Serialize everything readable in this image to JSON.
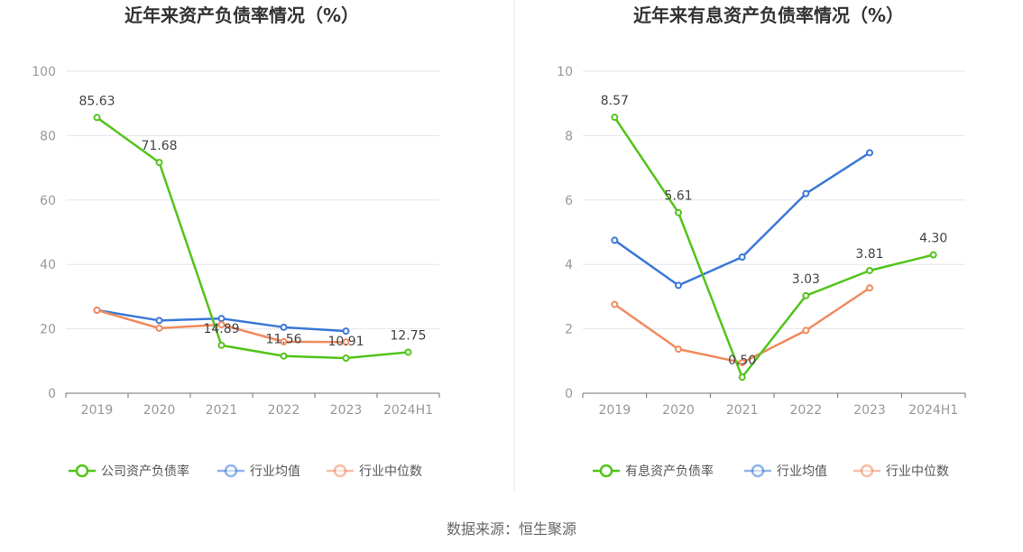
{
  "source": "数据来源：恒生聚源",
  "chart_data": [
    {
      "type": "line",
      "title": "近年来资产负债率情况（%）",
      "categories": [
        "2019",
        "2020",
        "2021",
        "2022",
        "2023",
        "2024H1"
      ],
      "ylim": [
        0,
        100
      ],
      "yticks": [
        0,
        20,
        40,
        60,
        80,
        100
      ],
      "ytick_labels": [
        "0",
        "20",
        "40",
        "60",
        "80",
        "100"
      ],
      "grid": true,
      "legend_position": "bottom",
      "series": [
        {
          "name": "公司资产负债率",
          "color": "#52c41a",
          "values": [
            85.63,
            71.68,
            14.89,
            11.56,
            10.91,
            12.75
          ],
          "labels": [
            "85.63",
            "71.68",
            "14.89",
            "11.56",
            "10.91",
            "12.75"
          ]
        },
        {
          "name": "行业均值",
          "color": "#3a78d8",
          "values": [
            25.8,
            22.6,
            23.2,
            20.5,
            19.3,
            null
          ]
        },
        {
          "name": "行业中位数",
          "color": "#f08a5d",
          "values": [
            25.8,
            20.2,
            21.3,
            16.0,
            15.9,
            null
          ]
        }
      ]
    },
    {
      "type": "line",
      "title": "近年来有息资产负债率情况（%）",
      "categories": [
        "2019",
        "2020",
        "2021",
        "2022",
        "2023",
        "2024H1"
      ],
      "ylim": [
        0,
        10
      ],
      "yticks": [
        0,
        2,
        4,
        6,
        8,
        10
      ],
      "ytick_labels": [
        "0",
        "2",
        "4",
        "6",
        "8",
        "10"
      ],
      "grid": true,
      "legend_position": "bottom",
      "series": [
        {
          "name": "有息资产负债率",
          "color": "#52c41a",
          "values": [
            8.57,
            5.61,
            0.5,
            3.03,
            3.81,
            4.3
          ],
          "labels": [
            "8.57",
            "5.61",
            "0.50",
            "3.03",
            "3.81",
            "4.30"
          ]
        },
        {
          "name": "行业均值",
          "color": "#3a78d8",
          "values": [
            4.75,
            3.35,
            4.23,
            6.2,
            7.47,
            null
          ]
        },
        {
          "name": "行业中位数",
          "color": "#f08a5d",
          "values": [
            2.76,
            1.37,
            0.95,
            1.95,
            3.27,
            null
          ]
        }
      ]
    }
  ]
}
